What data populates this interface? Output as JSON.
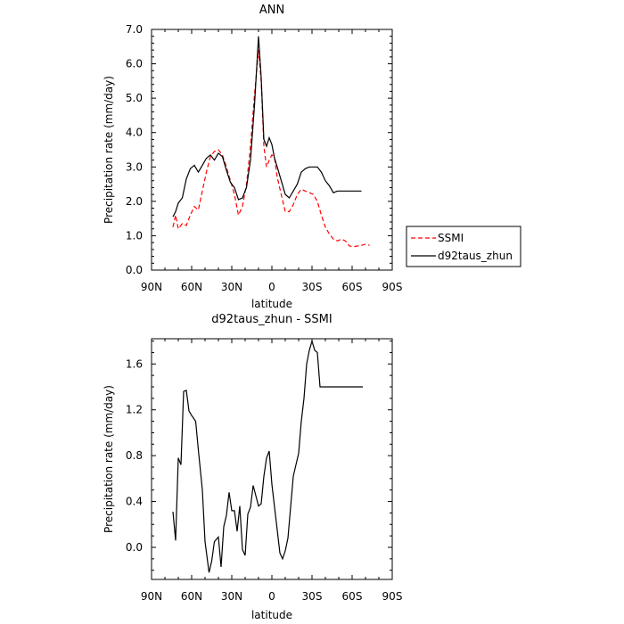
{
  "chart_data": [
    {
      "type": "line",
      "title": "ANN",
      "xlabel": "latitude",
      "ylabel": "Precipitation rate (mm/day)",
      "xlim": [
        -90,
        90
      ],
      "ylim": [
        0,
        7
      ],
      "x_ticks": [
        {
          "value": -90,
          "label": "90N"
        },
        {
          "value": -60,
          "label": "60N"
        },
        {
          "value": -30,
          "label": "30N"
        },
        {
          "value": 0,
          "label": "0"
        },
        {
          "value": 30,
          "label": "30S"
        },
        {
          "value": 60,
          "label": "60S"
        },
        {
          "value": 90,
          "label": "90S"
        }
      ],
      "y_ticks": [
        {
          "value": 0,
          "label": "0.0"
        },
        {
          "value": 1,
          "label": "1.0"
        },
        {
          "value": 2,
          "label": "2.0"
        },
        {
          "value": 3,
          "label": "3.0"
        },
        {
          "value": 4,
          "label": "4.0"
        },
        {
          "value": 5,
          "label": "5.0"
        },
        {
          "value": 6,
          "label": "6.0"
        },
        {
          "value": 7,
          "label": "7.0"
        }
      ],
      "legend": "right",
      "series": [
        {
          "name": "SSMI",
          "color": "#ff0000",
          "dash": "dashed",
          "x": [
            -74,
            -72,
            -70,
            -67,
            -64,
            -61,
            -58,
            -55,
            -52,
            -49,
            -46,
            -43,
            -40,
            -37,
            -34,
            -31,
            -28,
            -25,
            -22,
            -19,
            -16,
            -13,
            -10,
            -8,
            -6,
            -4,
            -2,
            0,
            2,
            4,
            7,
            10,
            13,
            16,
            19,
            22,
            25,
            28,
            31,
            34,
            37,
            40,
            43,
            46,
            49,
            52,
            55,
            58,
            61,
            64,
            67,
            70,
            73
          ],
          "values": [
            1.25,
            1.6,
            1.2,
            1.35,
            1.3,
            1.6,
            1.85,
            1.75,
            2.3,
            2.85,
            3.3,
            3.45,
            3.5,
            3.35,
            3.0,
            2.6,
            2.2,
            1.6,
            1.85,
            2.5,
            3.6,
            5.1,
            6.4,
            5.5,
            3.6,
            3.0,
            3.2,
            3.35,
            3.25,
            2.7,
            2.2,
            1.7,
            1.7,
            1.9,
            2.2,
            2.35,
            2.3,
            2.25,
            2.2,
            2.0,
            1.6,
            1.25,
            1.05,
            0.9,
            0.85,
            0.9,
            0.85,
            0.7,
            0.68,
            0.7,
            0.72,
            0.75,
            0.72
          ]
        },
        {
          "name": "d92taus_zhun",
          "color": "#000000",
          "dash": "solid",
          "x": [
            -74,
            -72,
            -70,
            -67,
            -64,
            -61,
            -58,
            -55,
            -52,
            -49,
            -46,
            -43,
            -40,
            -37,
            -34,
            -31,
            -28,
            -25,
            -22,
            -19,
            -16,
            -13,
            -10,
            -8,
            -6,
            -4,
            -2,
            0,
            2,
            4,
            7,
            10,
            13,
            16,
            19,
            22,
            25,
            28,
            31,
            34,
            37,
            40,
            43,
            46,
            49,
            52,
            55,
            58,
            61,
            64,
            67
          ],
          "values": [
            1.55,
            1.7,
            1.95,
            2.1,
            2.65,
            2.95,
            3.05,
            2.85,
            3.05,
            3.25,
            3.35,
            3.2,
            3.4,
            3.3,
            2.9,
            2.55,
            2.4,
            2.05,
            2.1,
            2.4,
            3.2,
            4.8,
            6.8,
            5.6,
            3.8,
            3.6,
            3.85,
            3.65,
            3.25,
            3.0,
            2.6,
            2.2,
            2.1,
            2.3,
            2.5,
            2.85,
            2.95,
            3.0,
            3.0,
            3.0,
            2.85,
            2.6,
            2.45,
            2.25,
            2.3,
            2.3,
            2.3,
            2.3,
            2.3,
            2.3,
            2.3
          ]
        }
      ]
    },
    {
      "type": "line",
      "title": "d92taus_zhun - SSMI",
      "xlabel": "latitude",
      "ylabel": "Precipitation rate (mm/day)",
      "xlim": [
        -90,
        90
      ],
      "ylim": [
        -0.28,
        1.82
      ],
      "x_ticks": [
        {
          "value": -90,
          "label": "90N"
        },
        {
          "value": -60,
          "label": "60N"
        },
        {
          "value": -30,
          "label": "30N"
        },
        {
          "value": 0,
          "label": "0"
        },
        {
          "value": 30,
          "label": "30S"
        },
        {
          "value": 60,
          "label": "60S"
        },
        {
          "value": 90,
          "label": "90S"
        }
      ],
      "y_ticks": [
        {
          "value": 0,
          "label": "0.0"
        },
        {
          "value": 0.4,
          "label": "0.4"
        },
        {
          "value": 0.8,
          "label": "0.8"
        },
        {
          "value": 1.2,
          "label": "1.2"
        },
        {
          "value": 1.6,
          "label": "1.6"
        }
      ],
      "series": [
        {
          "color": "#000000",
          "dash": "solid",
          "x": [
            -74,
            -72,
            -70,
            -68,
            -66,
            -64,
            -62,
            -60,
            -57,
            -55,
            -52,
            -50,
            -47,
            -45,
            -43,
            -40,
            -38,
            -36,
            -34,
            -32,
            -30,
            -28,
            -26,
            -24,
            -22,
            -20,
            -18,
            -16,
            -14,
            -12,
            -10,
            -8,
            -6,
            -4,
            -2,
            0,
            2,
            4,
            6,
            8,
            10,
            12,
            14,
            16,
            18,
            20,
            22,
            24,
            26,
            28,
            30,
            32,
            34,
            36,
            38,
            40,
            42,
            44,
            46,
            48,
            50,
            52,
            54,
            56,
            58,
            60,
            62,
            64,
            66,
            68
          ],
          "values": [
            0.31,
            0.06,
            0.78,
            0.72,
            1.36,
            1.37,
            1.19,
            1.15,
            1.1,
            0.85,
            0.5,
            0.05,
            -0.22,
            -0.12,
            0.05,
            0.09,
            -0.17,
            0.18,
            0.28,
            0.48,
            0.32,
            0.32,
            0.14,
            0.36,
            -0.02,
            -0.07,
            0.29,
            0.35,
            0.54,
            0.45,
            0.36,
            0.38,
            0.62,
            0.78,
            0.84,
            0.55,
            0.35,
            0.15,
            -0.05,
            -0.1,
            -0.03,
            0.08,
            0.35,
            0.62,
            0.72,
            0.82,
            1.1,
            1.3,
            1.6,
            1.72,
            1.8,
            1.72,
            1.7,
            1.4,
            1.4,
            1.4,
            1.4,
            1.4,
            1.4,
            1.4,
            1.4,
            1.4,
            1.4,
            1.4,
            1.4,
            1.4,
            1.4,
            1.4,
            1.4,
            1.4
          ]
        }
      ]
    }
  ]
}
